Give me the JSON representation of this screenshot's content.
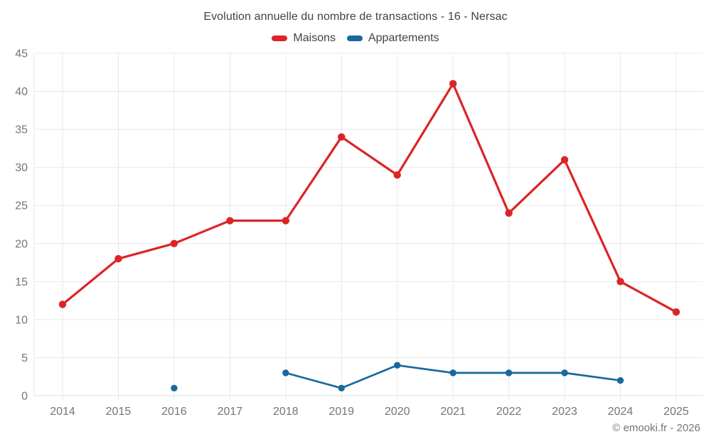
{
  "chart_data": {
    "type": "line",
    "title": "Evolution annuelle du nombre de transactions - 16 - Nersac",
    "categories": [
      "2014",
      "2015",
      "2016",
      "2017",
      "2018",
      "2019",
      "2020",
      "2021",
      "2022",
      "2023",
      "2024",
      "2025"
    ],
    "series": [
      {
        "name": "Maisons",
        "color": "#dc2427",
        "line_width": 3.2,
        "point_radius": 5.2,
        "values": [
          12,
          18,
          20,
          23,
          23,
          34,
          29,
          41,
          24,
          31,
          15,
          11
        ]
      },
      {
        "name": "Appartements",
        "color": "#17699e",
        "line_width": 2.7,
        "point_radius": 4.7,
        "values": [
          null,
          null,
          1,
          null,
          3,
          1,
          4,
          3,
          3,
          3,
          2,
          null
        ]
      }
    ],
    "xlabel": "",
    "ylabel": "",
    "ylim": [
      0,
      45
    ],
    "ytick_step": 5,
    "yticks": [
      0,
      5,
      10,
      15,
      20,
      25,
      30,
      35,
      40,
      45
    ],
    "grid": true,
    "legend_position": "top"
  },
  "footer": {
    "credit": "© emooki.fr - 2026"
  },
  "style": {
    "background": "#ffffff",
    "gridline_color": "#e8e8e8",
    "axis_line_color": "#dedede",
    "axis_label_color": "#757575",
    "title_color": "#424242"
  }
}
